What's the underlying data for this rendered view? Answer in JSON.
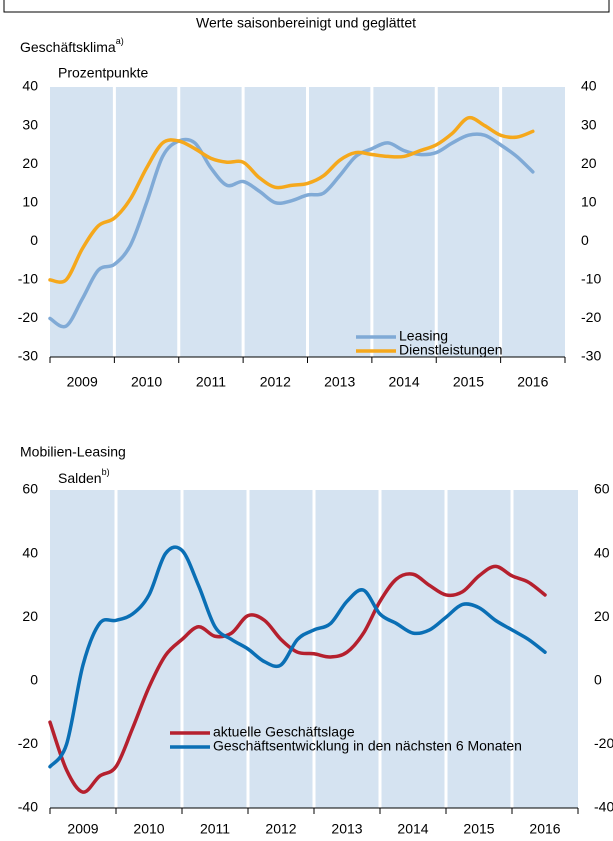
{
  "title": "Werte saisonbereinigt und geglättet",
  "chart_data": [
    {
      "type": "line",
      "title": "Geschäftsklima",
      "title_note": "a)",
      "ylabel": "Prozentpunkte",
      "xlim": [
        2009,
        2017
      ],
      "xticks": [
        {
          "value": 2009.5,
          "label": "2009"
        },
        {
          "value": 2010.5,
          "label": "2010"
        },
        {
          "value": 2011.5,
          "label": "2011"
        },
        {
          "value": 2012.5,
          "label": "2012"
        },
        {
          "value": 2013.5,
          "label": "2013"
        },
        {
          "value": 2014.5,
          "label": "2014"
        },
        {
          "value": 2015.5,
          "label": "2015"
        },
        {
          "value": 2016.5,
          "label": "2016"
        }
      ],
      "ylim": [
        -30,
        40
      ],
      "yticks": [
        -30,
        -20,
        -10,
        0,
        10,
        20,
        30,
        40
      ],
      "legend": "lower right",
      "x": [
        2009.0,
        2009.25,
        2009.5,
        2009.75,
        2010.0,
        2010.25,
        2010.5,
        2010.75,
        2011.0,
        2011.25,
        2011.5,
        2011.75,
        2012.0,
        2012.25,
        2012.5,
        2012.75,
        2013.0,
        2013.25,
        2013.5,
        2013.75,
        2014.0,
        2014.25,
        2014.5,
        2014.75,
        2015.0,
        2015.25,
        2015.5,
        2015.75,
        2016.0,
        2016.25,
        2016.5
      ],
      "series": [
        {
          "name": "Leasing",
          "color": "#80aad6",
          "values": [
            -20,
            -22,
            -15,
            -7.5,
            -6,
            -1,
            10,
            22,
            26,
            25.5,
            19,
            14.5,
            15.5,
            13,
            10,
            10.5,
            12,
            12.5,
            17,
            22,
            24,
            25.5,
            23.5,
            22.5,
            23,
            25.5,
            27.5,
            27.5,
            25,
            22,
            18
          ]
        },
        {
          "name": "Dienstleistungen",
          "color": "#f5a81c",
          "values": [
            -10,
            -10,
            -2,
            4,
            6,
            11,
            19,
            25.5,
            26,
            24,
            21.5,
            20.5,
            20.5,
            16.5,
            14,
            14.5,
            15,
            17,
            21,
            23,
            22.5,
            22,
            22,
            23.5,
            25,
            28,
            32,
            30,
            27.5,
            27,
            28.5
          ]
        }
      ]
    },
    {
      "type": "line",
      "title": "Mobilien-Leasing",
      "ylabel": "Salden",
      "ylabel_note": "b)",
      "xlim": [
        2009,
        2017
      ],
      "xticks": [
        {
          "value": 2009.5,
          "label": "2009"
        },
        {
          "value": 2010.5,
          "label": "2010"
        },
        {
          "value": 2011.5,
          "label": "2011"
        },
        {
          "value": 2012.5,
          "label": "2012"
        },
        {
          "value": 2013.5,
          "label": "2013"
        },
        {
          "value": 2014.5,
          "label": "2014"
        },
        {
          "value": 2015.5,
          "label": "2015"
        },
        {
          "value": 2016.5,
          "label": "2016"
        }
      ],
      "ylim": [
        -40,
        60
      ],
      "yticks": [
        -40,
        -20,
        0,
        20,
        40,
        60
      ],
      "legend": "lower center",
      "x": [
        2009.0,
        2009.25,
        2009.5,
        2009.75,
        2010.0,
        2010.25,
        2010.5,
        2010.75,
        2011.0,
        2011.25,
        2011.5,
        2011.75,
        2012.0,
        2012.25,
        2012.5,
        2012.75,
        2013.0,
        2013.25,
        2013.5,
        2013.75,
        2014.0,
        2014.25,
        2014.5,
        2014.75,
        2015.0,
        2015.25,
        2015.5,
        2015.75,
        2016.0,
        2016.25,
        2016.5
      ],
      "series": [
        {
          "name": "aktuelle Geschäftslage",
          "color": "#b5202e",
          "values": [
            -13,
            -28,
            -35,
            -30,
            -27,
            -15,
            -2,
            8,
            13,
            17,
            14,
            15,
            20.5,
            19,
            13,
            9,
            8.5,
            7.5,
            9,
            15,
            25,
            32,
            33.5,
            30,
            27,
            28,
            33,
            36,
            33,
            31,
            27
          ]
        },
        {
          "name": "Geschäftsentwicklung in den nächsten 6 Monaten",
          "color": "#0a6fb5",
          "values": [
            -27,
            -20,
            5,
            18,
            19,
            21,
            27,
            40,
            41,
            30,
            17,
            13,
            10,
            6,
            5,
            13,
            16,
            18,
            25,
            28.5,
            21,
            18,
            15,
            16,
            20,
            24,
            23,
            19,
            16,
            13,
            9
          ]
        }
      ]
    }
  ]
}
